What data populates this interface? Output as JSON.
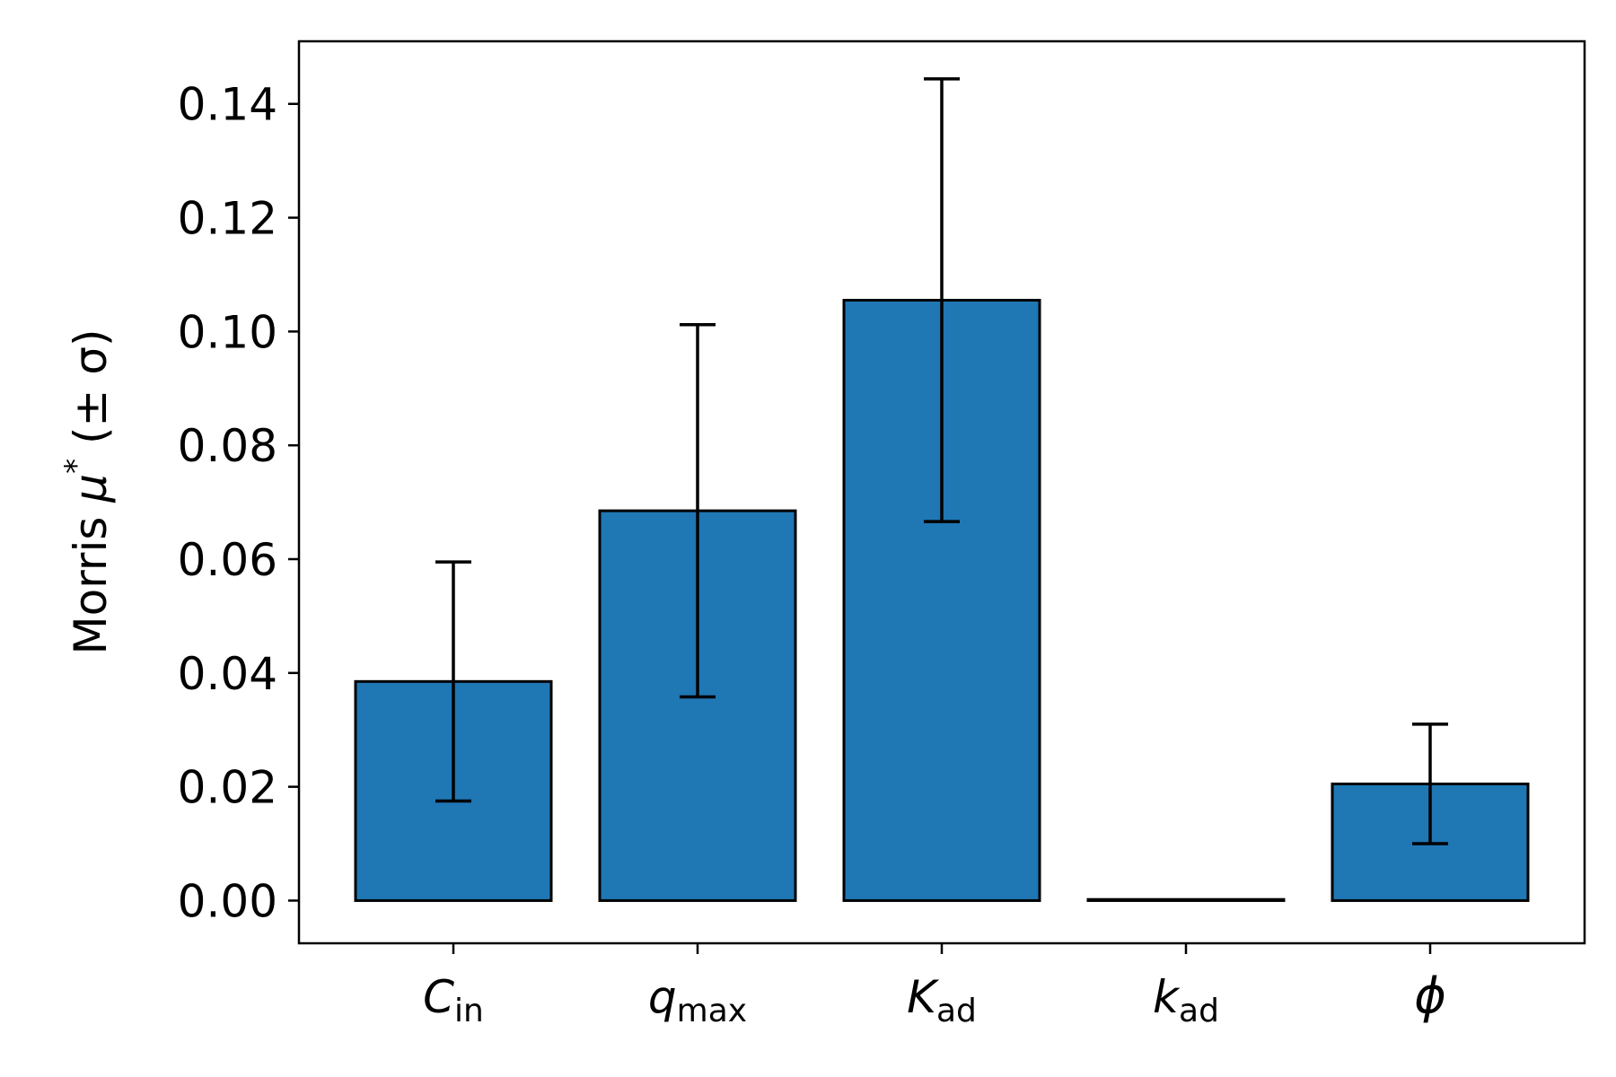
{
  "chart_data": {
    "type": "bar",
    "categories": [
      {
        "id": "C_in",
        "symbol": "C",
        "sub": "in"
      },
      {
        "id": "q_max",
        "symbol": "q",
        "sub": "max"
      },
      {
        "id": "K_ad",
        "symbol": "K",
        "sub": "ad"
      },
      {
        "id": "k_ad",
        "symbol": "k",
        "sub": "ad"
      },
      {
        "id": "phi",
        "symbol": "ϕ",
        "sub": ""
      }
    ],
    "values": [
      0.0385,
      0.0685,
      0.1055,
      0.0002,
      0.0205
    ],
    "errors": [
      0.021,
      0.0327,
      0.0389,
      0.0,
      0.0105
    ],
    "ylabel": {
      "prefix": "Morris ",
      "symbol": "μ",
      "sup": "*",
      "suffix": " (± σ)"
    },
    "ylim": [
      -0.0075,
      0.151
    ],
    "yticks": [
      0.0,
      0.02,
      0.04,
      0.06,
      0.08,
      0.1,
      0.12,
      0.14
    ],
    "ytick_labels": [
      "0.00",
      "0.02",
      "0.04",
      "0.06",
      "0.08",
      "0.10",
      "0.12",
      "0.14"
    ],
    "grid": false,
    "colors": {
      "bar": "#1f77b4",
      "edge": "#000000",
      "errorbar": "#000000"
    }
  }
}
